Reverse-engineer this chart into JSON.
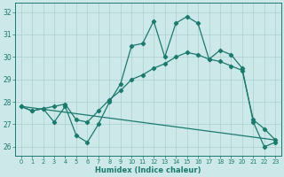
{
  "title": "",
  "xlabel": "Humidex (Indice chaleur)",
  "background_color": "#cce8e8",
  "grid_color": "#aacfcf",
  "line_color": "#1a7a6e",
  "xlim": [
    -0.5,
    23.5
  ],
  "ylim": [
    25.6,
    32.4
  ],
  "yticks": [
    26,
    27,
    28,
    29,
    30,
    31,
    32
  ],
  "xticks": [
    0,
    1,
    2,
    3,
    4,
    5,
    6,
    7,
    8,
    9,
    10,
    11,
    12,
    13,
    14,
    15,
    16,
    17,
    18,
    19,
    20,
    21,
    22,
    23
  ],
  "series1_x": [
    0,
    1,
    2,
    3,
    4,
    5,
    6,
    7,
    8,
    9,
    10,
    11,
    12,
    13,
    14,
    15,
    16,
    17,
    18,
    19,
    20,
    21,
    22,
    23
  ],
  "series1_y": [
    27.8,
    27.6,
    27.7,
    27.1,
    27.8,
    26.5,
    26.2,
    27.0,
    28.0,
    28.8,
    30.5,
    30.6,
    31.6,
    30.0,
    31.5,
    31.8,
    31.5,
    29.9,
    30.3,
    30.1,
    29.5,
    27.1,
    26.0,
    26.2
  ],
  "series2_x": [
    0,
    1,
    2,
    3,
    4,
    5,
    6,
    7,
    8,
    9,
    10,
    11,
    12,
    13,
    14,
    15,
    16,
    17,
    18,
    19,
    20,
    21,
    22,
    23
  ],
  "series2_y": [
    27.8,
    27.6,
    27.7,
    27.8,
    27.9,
    27.2,
    27.1,
    27.6,
    28.1,
    28.5,
    29.0,
    29.2,
    29.5,
    29.7,
    30.0,
    30.2,
    30.1,
    29.9,
    29.8,
    29.6,
    29.4,
    27.2,
    26.8,
    26.3
  ],
  "series3_x": [
    0,
    23
  ],
  "series3_y": [
    27.8,
    26.3
  ],
  "marker_size": 2.2,
  "line_width": 0.9
}
